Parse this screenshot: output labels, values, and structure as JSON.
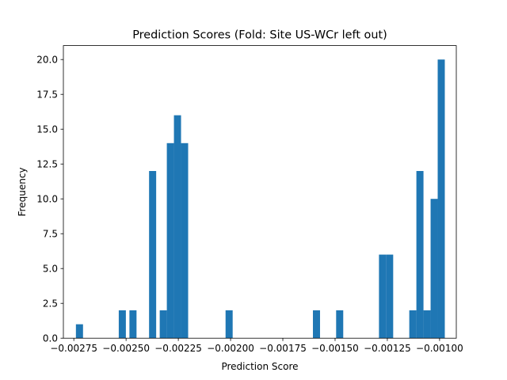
{
  "chart_data": {
    "type": "bar",
    "title": "Prediction Scores (Fold: Site US-WCr left out)",
    "xlabel": "Prediction Score",
    "ylabel": "Frequency",
    "xlim": [
      -0.0028,
      -0.00092
    ],
    "ylim": [
      0,
      21
    ],
    "x_ticks": [
      -0.00275,
      -0.0025,
      -0.00225,
      -0.002,
      -0.00175,
      -0.0015,
      -0.00125,
      -0.001
    ],
    "x_tick_labels": [
      "−0.00275",
      "−0.00250",
      "−0.00225",
      "−0.00200",
      "−0.00175",
      "−0.00150",
      "−0.00125",
      "−0.00100"
    ],
    "y_ticks": [
      0,
      2.5,
      5,
      7.5,
      10,
      12.5,
      15,
      17.5,
      20
    ],
    "y_tick_labels": [
      "0.0",
      "2.5",
      "5.0",
      "7.5",
      "10.0",
      "12.5",
      "15.0",
      "17.5",
      "20.0"
    ],
    "bar_color": "#1f77b4",
    "bins": [
      {
        "x0": -0.00274,
        "x1": -0.002706,
        "count": 1
      },
      {
        "x0": -0.002535,
        "x1": -0.002501,
        "count": 2
      },
      {
        "x0": -0.002484,
        "x1": -0.00245,
        "count": 2
      },
      {
        "x0": -0.00239,
        "x1": -0.002356,
        "count": 12
      },
      {
        "x0": -0.002339,
        "x1": -0.002305,
        "count": 2
      },
      {
        "x0": -0.002305,
        "x1": -0.002271,
        "count": 14
      },
      {
        "x0": -0.002271,
        "x1": -0.002237,
        "count": 16
      },
      {
        "x0": -0.002237,
        "x1": -0.002203,
        "count": 14
      },
      {
        "x0": -0.002024,
        "x1": -0.00199,
        "count": 2
      },
      {
        "x0": -0.001606,
        "x1": -0.001572,
        "count": 2
      },
      {
        "x0": -0.001495,
        "x1": -0.001461,
        "count": 2
      },
      {
        "x0": -0.00129,
        "x1": -0.001256,
        "count": 6
      },
      {
        "x0": -0.001256,
        "x1": -0.001222,
        "count": 6
      },
      {
        "x0": -0.001145,
        "x1": -0.001111,
        "count": 2
      },
      {
        "x0": -0.001111,
        "x1": -0.001077,
        "count": 12
      },
      {
        "x0": -0.001077,
        "x1": -0.001043,
        "count": 2
      },
      {
        "x0": -0.001043,
        "x1": -0.001009,
        "count": 10
      },
      {
        "x0": -0.001009,
        "x1": -0.000975,
        "count": 20
      }
    ]
  }
}
